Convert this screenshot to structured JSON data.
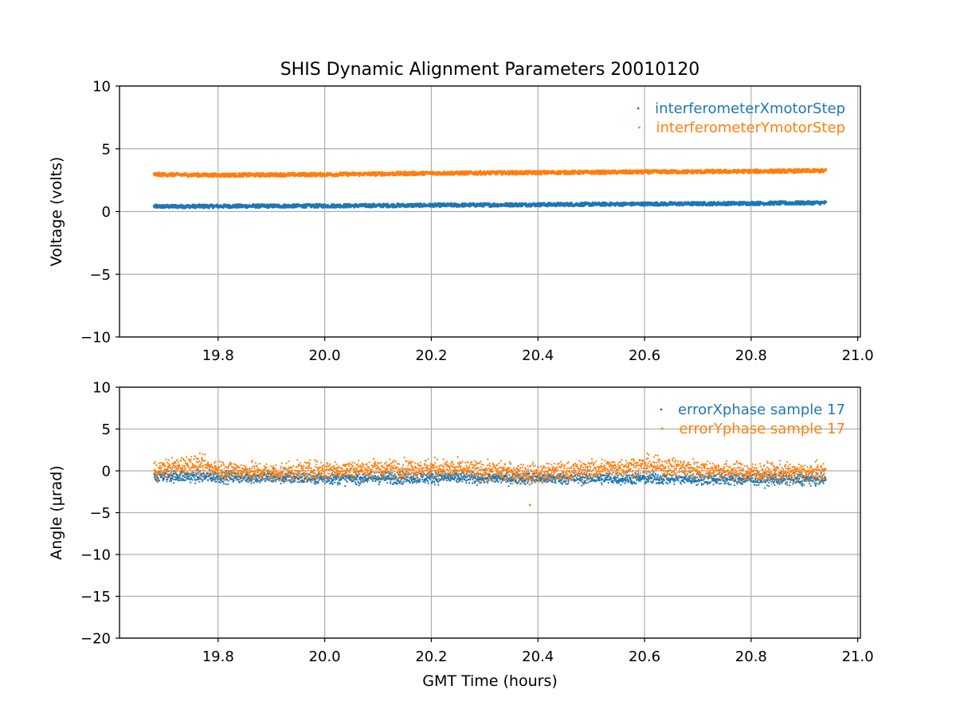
{
  "title": "SHIS Dynamic Alignment Parameters 20010120",
  "colors": {
    "series1": "#1f77b4",
    "series2": "#ff7f0e",
    "grid": "#b0b0b0",
    "axis": "#000000"
  },
  "chart_data": [
    {
      "type": "scatter",
      "title": "SHIS Dynamic Alignment Parameters 20010120",
      "xlabel": "",
      "ylabel": "Voltage (volts)",
      "xlim": [
        19.615,
        21.005
      ],
      "ylim": [
        -10,
        10
      ],
      "x_ticks": [
        19.8,
        20.0,
        20.2,
        20.4,
        20.6,
        20.8,
        21.0
      ],
      "x_tick_labels": [
        "19.8",
        "20.0",
        "20.2",
        "20.4",
        "20.6",
        "20.8",
        "21.0"
      ],
      "y_ticks": [
        10,
        5,
        0,
        -5,
        -10
      ],
      "y_tick_labels": [
        "10",
        "5",
        "0",
        "−5",
        "−10"
      ],
      "grid": true,
      "legend": "top-right",
      "series": [
        {
          "name": "interferometerXmotorStep",
          "x": [
            19.68,
            19.8,
            20.0,
            20.2,
            20.4,
            20.6,
            20.8,
            20.94
          ],
          "values": [
            0.4,
            0.42,
            0.45,
            0.5,
            0.55,
            0.6,
            0.65,
            0.7
          ]
        },
        {
          "name": "interferometerYmotorStep",
          "x": [
            19.68,
            19.8,
            20.0,
            20.2,
            20.4,
            20.6,
            20.8,
            20.94
          ],
          "values": [
            2.95,
            2.9,
            2.95,
            3.05,
            3.1,
            3.15,
            3.2,
            3.25
          ]
        }
      ]
    },
    {
      "type": "scatter",
      "title": "",
      "xlabel": "GMT Time (hours)",
      "ylabel": "Angle (μrad)",
      "xlim": [
        19.615,
        21.005
      ],
      "ylim": [
        -20,
        10
      ],
      "x_ticks": [
        19.8,
        20.0,
        20.2,
        20.4,
        20.6,
        20.8,
        21.0
      ],
      "x_tick_labels": [
        "19.8",
        "20.0",
        "20.2",
        "20.4",
        "20.6",
        "20.8",
        "21.0"
      ],
      "y_ticks": [
        10,
        5,
        0,
        -5,
        -10,
        -15,
        -20
      ],
      "y_tick_labels": [
        "10",
        "5",
        "0",
        "−5",
        "−10",
        "−15",
        "−20"
      ],
      "grid": true,
      "legend": "top-right",
      "series": [
        {
          "name": "errorXphase sample 17",
          "x": [
            19.68,
            19.8,
            20.0,
            20.2,
            20.4,
            20.6,
            20.8,
            20.94
          ],
          "values": [
            -0.6,
            -0.7,
            -0.9,
            -0.8,
            -0.9,
            -0.9,
            -1.0,
            -1.0
          ]
        },
        {
          "name": "errorYphase sample 17",
          "x": [
            19.68,
            19.75,
            19.8,
            19.9,
            20.0,
            20.2,
            20.4,
            20.6,
            20.8,
            20.94
          ],
          "values": [
            0.0,
            0.8,
            0.2,
            -0.2,
            0.1,
            0.3,
            -0.3,
            0.6,
            -0.2,
            -0.2
          ]
        }
      ],
      "annotations": [
        {
          "x": 20.385,
          "y": -4.1,
          "note": "outlier (errorYphase)"
        }
      ]
    }
  ]
}
